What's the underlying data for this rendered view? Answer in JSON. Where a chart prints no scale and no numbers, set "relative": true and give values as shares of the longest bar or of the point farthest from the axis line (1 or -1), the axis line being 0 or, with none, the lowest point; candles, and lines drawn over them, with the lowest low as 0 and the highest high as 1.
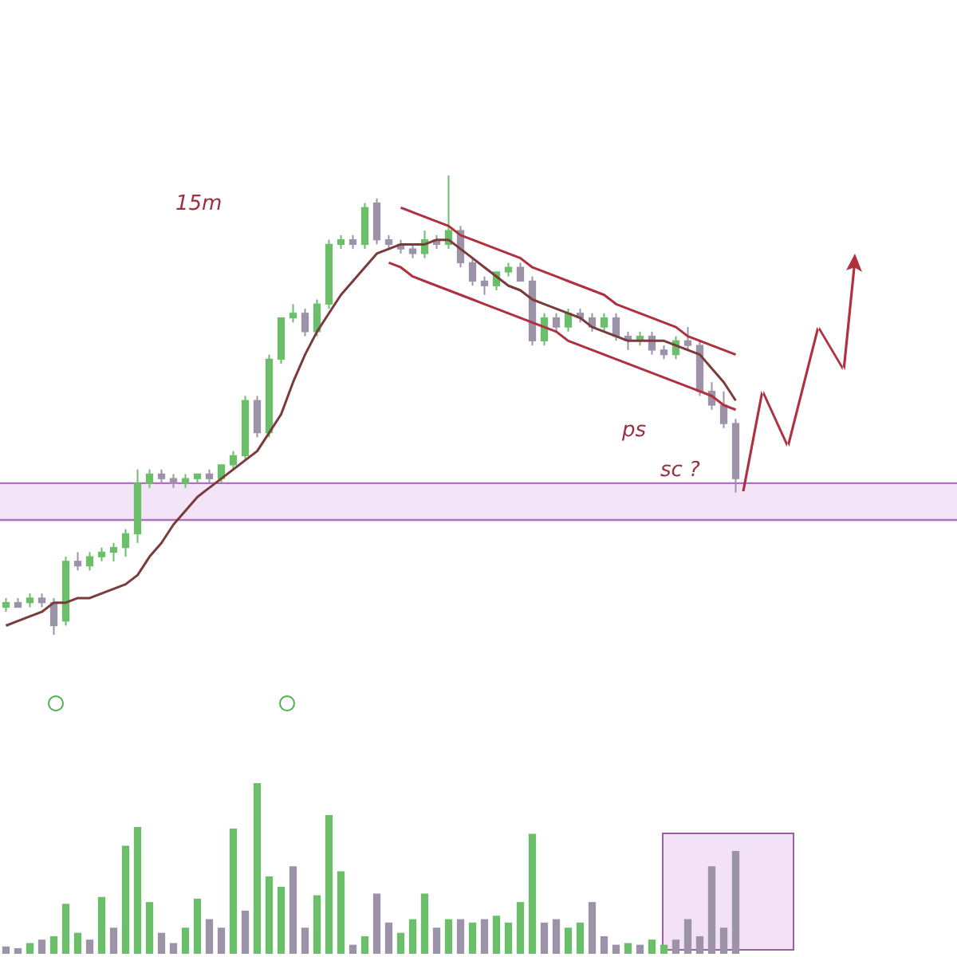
{
  "chart_data": [
    {
      "type": "candlestick",
      "title": "15m",
      "relative": true,
      "tick_labels": false,
      "grid": false,
      "categories": [
        null,
        null,
        null,
        null,
        null,
        null,
        null,
        null,
        null,
        null,
        null,
        null,
        null,
        null,
        null,
        null,
        null,
        null,
        null,
        null,
        null,
        null,
        null,
        null,
        null,
        null,
        null,
        null,
        null,
        null,
        null,
        null,
        null,
        null,
        null,
        null,
        null,
        null,
        null,
        null,
        null,
        null,
        null,
        null,
        null,
        null,
        null,
        null,
        null,
        null,
        null,
        null,
        null,
        null,
        null,
        null,
        null,
        null,
        null,
        null,
        null,
        null
      ],
      "ohlc": [
        [
          0.06,
          0.08,
          0.05,
          0.07
        ],
        [
          0.07,
          0.08,
          0.06,
          0.06
        ],
        [
          0.07,
          0.09,
          0.06,
          0.08
        ],
        [
          0.08,
          0.09,
          0.06,
          0.07
        ],
        [
          0.07,
          0.08,
          0.0,
          0.02
        ],
        [
          0.03,
          0.17,
          0.02,
          0.16
        ],
        [
          0.16,
          0.18,
          0.14,
          0.15
        ],
        [
          0.15,
          0.18,
          0.14,
          0.17
        ],
        [
          0.17,
          0.19,
          0.16,
          0.18
        ],
        [
          0.18,
          0.2,
          0.16,
          0.19
        ],
        [
          0.19,
          0.23,
          0.17,
          0.22
        ],
        [
          0.22,
          0.36,
          0.2,
          0.33
        ],
        [
          0.33,
          0.36,
          0.32,
          0.35
        ],
        [
          0.35,
          0.36,
          0.33,
          0.34
        ],
        [
          0.34,
          0.35,
          0.32,
          0.33
        ],
        [
          0.33,
          0.35,
          0.32,
          0.34
        ],
        [
          0.34,
          0.35,
          0.33,
          0.35
        ],
        [
          0.35,
          0.36,
          0.33,
          0.34
        ],
        [
          0.34,
          0.37,
          0.33,
          0.37
        ],
        [
          0.37,
          0.4,
          0.36,
          0.39
        ],
        [
          0.39,
          0.52,
          0.38,
          0.51
        ],
        [
          0.51,
          0.52,
          0.43,
          0.44
        ],
        [
          0.44,
          0.61,
          0.43,
          0.6
        ],
        [
          0.6,
          0.69,
          0.59,
          0.69
        ],
        [
          0.69,
          0.72,
          0.68,
          0.7
        ],
        [
          0.7,
          0.71,
          0.65,
          0.66
        ],
        [
          0.66,
          0.73,
          0.65,
          0.72
        ],
        [
          0.72,
          0.86,
          0.71,
          0.85
        ],
        [
          0.85,
          0.87,
          0.84,
          0.86
        ],
        [
          0.86,
          0.87,
          0.84,
          0.85
        ],
        [
          0.85,
          0.94,
          0.84,
          0.93
        ],
        [
          0.94,
          0.95,
          0.85,
          0.86
        ],
        [
          0.86,
          0.87,
          0.84,
          0.85
        ],
        [
          0.85,
          0.86,
          0.83,
          0.84
        ],
        [
          0.84,
          0.85,
          0.82,
          0.83
        ],
        [
          0.83,
          0.88,
          0.82,
          0.86
        ],
        [
          0.86,
          0.87,
          0.84,
          0.85
        ],
        [
          0.85,
          1.0,
          0.84,
          0.88
        ],
        [
          0.88,
          0.89,
          0.8,
          0.81
        ],
        [
          0.81,
          0.82,
          0.76,
          0.77
        ],
        [
          0.77,
          0.78,
          0.74,
          0.76
        ],
        [
          0.76,
          0.79,
          0.75,
          0.79
        ],
        [
          0.79,
          0.81,
          0.78,
          0.8
        ],
        [
          0.8,
          0.81,
          0.77,
          0.77
        ],
        [
          0.77,
          0.78,
          0.63,
          0.64
        ],
        [
          0.64,
          0.7,
          0.63,
          0.69
        ],
        [
          0.69,
          0.7,
          0.66,
          0.67
        ],
        [
          0.67,
          0.71,
          0.66,
          0.7
        ],
        [
          0.7,
          0.71,
          0.68,
          0.69
        ],
        [
          0.69,
          0.7,
          0.66,
          0.67
        ],
        [
          0.67,
          0.7,
          0.66,
          0.69
        ],
        [
          0.69,
          0.7,
          0.64,
          0.65
        ],
        [
          0.65,
          0.66,
          0.62,
          0.64
        ],
        [
          0.64,
          0.66,
          0.63,
          0.65
        ],
        [
          0.65,
          0.66,
          0.61,
          0.62
        ],
        [
          0.62,
          0.63,
          0.6,
          0.61
        ],
        [
          0.61,
          0.65,
          0.6,
          0.64
        ],
        [
          0.64,
          0.67,
          0.62,
          0.63
        ],
        [
          0.63,
          0.64,
          0.52,
          0.53
        ],
        [
          0.53,
          0.55,
          0.49,
          0.5
        ],
        [
          0.5,
          0.53,
          0.45,
          0.46
        ],
        [
          0.46,
          0.47,
          0.31,
          0.34
        ]
      ],
      "colors": [
        "#6cbf6a",
        "#9d93a8",
        "#6cbf6a",
        "#9d93a8",
        "#9d93a8",
        "#6cbf6a",
        "#9d93a8",
        "#6cbf6a",
        "#6cbf6a",
        "#6cbf6a",
        "#6cbf6a",
        "#6cbf6a",
        "#6cbf6a",
        "#9d93a8",
        "#9d93a8",
        "#6cbf6a",
        "#6cbf6a",
        "#9d93a8",
        "#6cbf6a",
        "#6cbf6a",
        "#6cbf6a",
        "#9d93a8",
        "#6cbf6a",
        "#6cbf6a",
        "#6cbf6a",
        "#9d93a8",
        "#6cbf6a",
        "#6cbf6a",
        "#6cbf6a",
        "#9d93a8",
        "#6cbf6a",
        "#9d93a8",
        "#9d93a8",
        "#9d93a8",
        "#9d93a8",
        "#6cbf6a",
        "#9d93a8",
        "#6cbf6a",
        "#9d93a8",
        "#9d93a8",
        "#9d93a8",
        "#6cbf6a",
        "#6cbf6a",
        "#9d93a8",
        "#9d93a8",
        "#6cbf6a",
        "#9d93a8",
        "#6cbf6a",
        "#9d93a8",
        "#9d93a8",
        "#6cbf6a",
        "#9d93a8",
        "#9d93a8",
        "#6cbf6a",
        "#9d93a8",
        "#9d93a8",
        "#6cbf6a",
        "#9d93a8",
        "#9d93a8",
        "#9d93a8",
        "#9d93a8",
        "#9d93a8"
      ],
      "series": [
        {
          "type": "line",
          "color": "#7a3b3b",
          "values": [
            0.02,
            0.03,
            0.04,
            0.05,
            0.07,
            0.07,
            0.08,
            0.08,
            0.09,
            0.1,
            0.11,
            0.13,
            0.17,
            0.2,
            0.24,
            0.27,
            0.3,
            0.32,
            0.34,
            0.36,
            0.38,
            0.4,
            0.44,
            0.48,
            0.55,
            0.61,
            0.66,
            0.7,
            0.74,
            0.77,
            0.8,
            0.83,
            0.84,
            0.85,
            0.85,
            0.85,
            0.86,
            0.86,
            0.84,
            0.82,
            0.8,
            0.78,
            0.76,
            0.75,
            0.73,
            0.72,
            0.71,
            0.7,
            0.69,
            0.67,
            0.66,
            0.65,
            0.64,
            0.64,
            0.64,
            0.64,
            0.63,
            0.62,
            0.61,
            0.58,
            0.55,
            0.51
          ]
        },
        {
          "type": "line",
          "color": "#b0303f",
          "values": [
            null,
            null,
            null,
            null,
            null,
            null,
            null,
            null,
            null,
            null,
            null,
            null,
            null,
            null,
            null,
            null,
            null,
            null,
            null,
            null,
            null,
            null,
            null,
            null,
            null,
            null,
            null,
            null,
            null,
            null,
            null,
            null,
            null,
            0.93,
            0.92,
            0.91,
            0.9,
            0.89,
            0.87,
            0.86,
            0.85,
            0.84,
            0.83,
            0.82,
            0.8,
            0.79,
            0.78,
            0.77,
            0.76,
            0.75,
            0.74,
            0.72,
            0.71,
            0.7,
            0.69,
            0.68,
            0.67,
            0.65,
            0.64,
            0.63,
            0.62,
            0.61
          ]
        },
        {
          "type": "line",
          "color": "#b0303f",
          "values": [
            null,
            null,
            null,
            null,
            null,
            null,
            null,
            null,
            null,
            null,
            null,
            null,
            null,
            null,
            null,
            null,
            null,
            null,
            null,
            null,
            null,
            null,
            null,
            null,
            null,
            null,
            null,
            null,
            null,
            null,
            null,
            null,
            0.81,
            0.8,
            0.78,
            0.77,
            0.76,
            0.75,
            0.74,
            0.73,
            0.72,
            0.71,
            0.7,
            0.69,
            0.68,
            0.67,
            0.66,
            0.64,
            0.63,
            0.62,
            0.61,
            0.6,
            0.59,
            0.58,
            0.57,
            0.56,
            0.55,
            0.54,
            0.53,
            0.52,
            0.5,
            0.49
          ]
        }
      ],
      "bands": [
        {
          "axis": "y",
          "from": 0.25,
          "to": 0.33,
          "color": "#f4e4f7"
        }
      ],
      "ref_lines": [
        {
          "axis": "y",
          "value": 0.33,
          "color": "#b070c0"
        },
        {
          "axis": "y",
          "value": 0.25,
          "color": "#b070c0"
        }
      ],
      "annotations": [
        "ps",
        "sc ?"
      ]
    },
    {
      "type": "bar",
      "relative": true,
      "tick_labels": false,
      "grid": false,
      "categories": [
        null,
        null,
        null,
        null,
        null,
        null,
        null,
        null,
        null,
        null,
        null,
        null,
        null,
        null,
        null,
        null,
        null,
        null,
        null,
        null,
        null,
        null,
        null,
        null,
        null,
        null,
        null,
        null,
        null,
        null,
        null,
        null,
        null,
        null,
        null,
        null,
        null,
        null,
        null,
        null,
        null,
        null,
        null,
        null,
        null,
        null,
        null,
        null,
        null,
        null,
        null,
        null,
        null,
        null,
        null,
        null,
        null,
        null,
        null,
        null,
        null,
        null
      ],
      "values": [
        0.04,
        0.03,
        0.06,
        0.08,
        0.1,
        0.29,
        0.12,
        0.08,
        0.33,
        0.15,
        0.63,
        0.74,
        0.3,
        0.12,
        0.06,
        0.15,
        0.32,
        0.2,
        0.15,
        0.73,
        0.25,
        1.0,
        0.45,
        0.39,
        0.51,
        0.15,
        0.34,
        0.81,
        0.48,
        0.05,
        0.1,
        0.35,
        0.18,
        0.12,
        0.2,
        0.35,
        0.15,
        0.2,
        0.2,
        0.18,
        0.2,
        0.22,
        0.18,
        0.3,
        0.7,
        0.18,
        0.2,
        0.15,
        0.18,
        0.3,
        0.1,
        0.05,
        0.06,
        0.05,
        0.08,
        0.05,
        0.08,
        0.2,
        0.1,
        0.51,
        0.15,
        0.6
      ],
      "colors": [
        "#9d93a8",
        "#9d93a8",
        "#6cbf6a",
        "#9d93a8",
        "#6cbf6a",
        "#6cbf6a",
        "#6cbf6a",
        "#9d93a8",
        "#6cbf6a",
        "#9d93a8",
        "#6cbf6a",
        "#6cbf6a",
        "#6cbf6a",
        "#9d93a8",
        "#9d93a8",
        "#6cbf6a",
        "#6cbf6a",
        "#9d93a8",
        "#9d93a8",
        "#6cbf6a",
        "#9d93a8",
        "#6cbf6a",
        "#6cbf6a",
        "#6cbf6a",
        "#9d93a8",
        "#9d93a8",
        "#6cbf6a",
        "#6cbf6a",
        "#6cbf6a",
        "#9d93a8",
        "#6cbf6a",
        "#9d93a8",
        "#9d93a8",
        "#6cbf6a",
        "#6cbf6a",
        "#6cbf6a",
        "#9d93a8",
        "#6cbf6a",
        "#9d93a8",
        "#6cbf6a",
        "#9d93a8",
        "#6cbf6a",
        "#6cbf6a",
        "#6cbf6a",
        "#6cbf6a",
        "#9d93a8",
        "#9d93a8",
        "#6cbf6a",
        "#6cbf6a",
        "#9d93a8",
        "#9d93a8",
        "#9d93a8",
        "#6cbf6a",
        "#9d93a8",
        "#6cbf6a",
        "#6cbf6a",
        "#9d93a8",
        "#9d93a8",
        "#9d93a8",
        "#9d93a8",
        "#9d93a8",
        "#9d93a8"
      ]
    }
  ]
}
